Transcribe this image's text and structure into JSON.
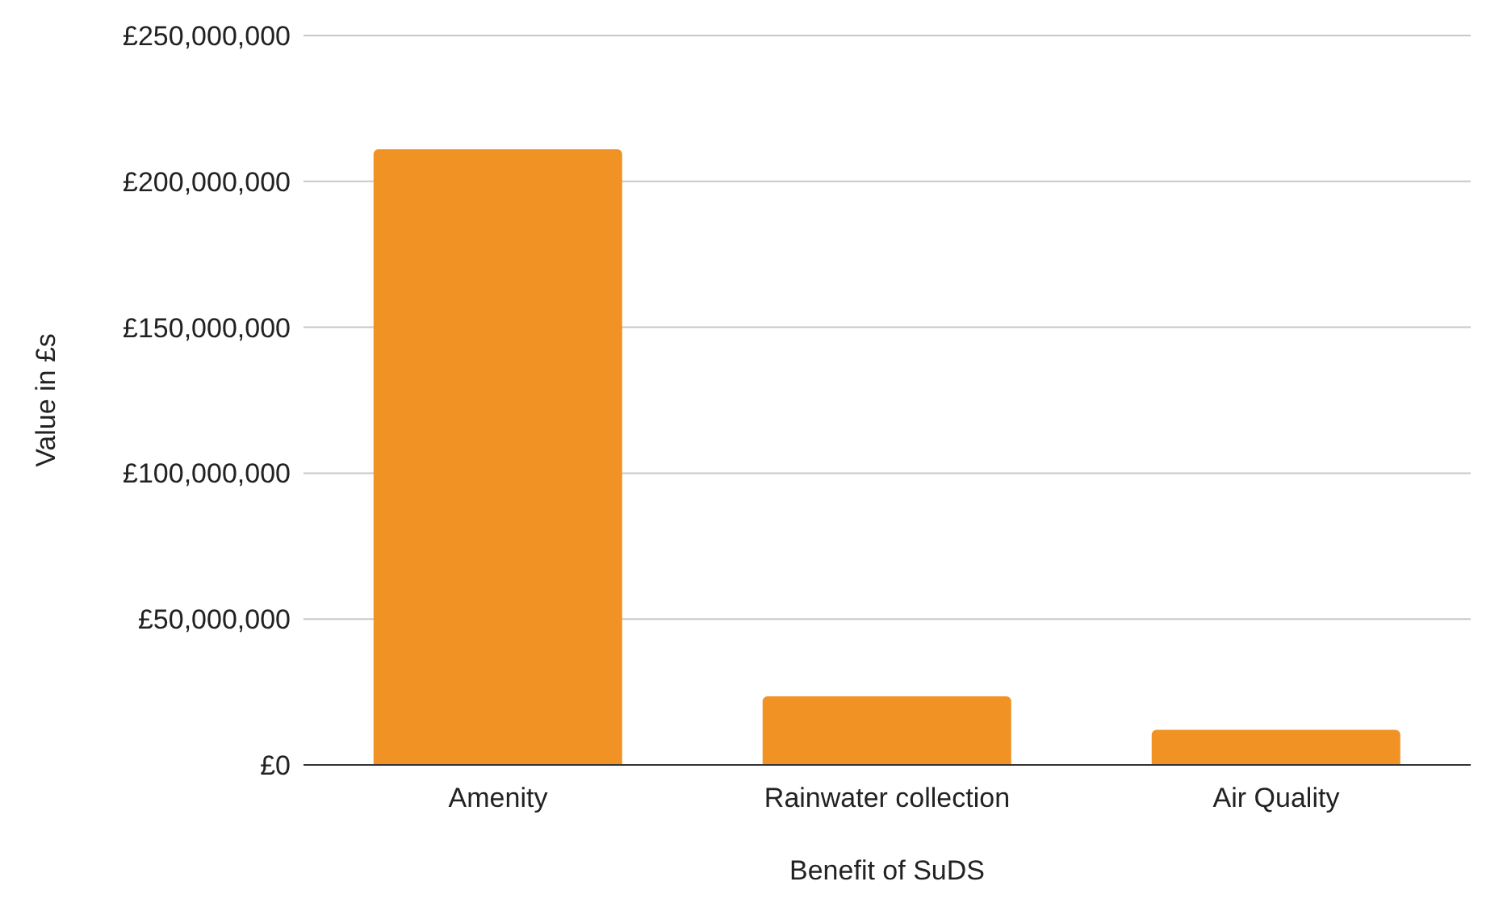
{
  "chart_data": {
    "type": "bar",
    "xlabel": "Benefit of SuDS",
    "ylabel": "Value in £s",
    "categories": [
      "Amenity",
      "Rainwater collection",
      "Air Quality"
    ],
    "series": [
      {
        "color": "#f09224",
        "values": [
          211000000,
          23500000,
          12000000
        ]
      }
    ],
    "ylim": [
      0,
      250000000
    ],
    "yticks": [
      {
        "value": 0,
        "label": "£0"
      },
      {
        "value": 50000000,
        "label": "£50,000,000"
      },
      {
        "value": 100000000,
        "label": "£100,000,000"
      },
      {
        "value": 150000000,
        "label": "£150,000,000"
      },
      {
        "value": 200000000,
        "label": "£200,000,000"
      },
      {
        "value": 250000000,
        "label": "£250,000,000"
      }
    ],
    "grid": "y",
    "legend": false
  }
}
